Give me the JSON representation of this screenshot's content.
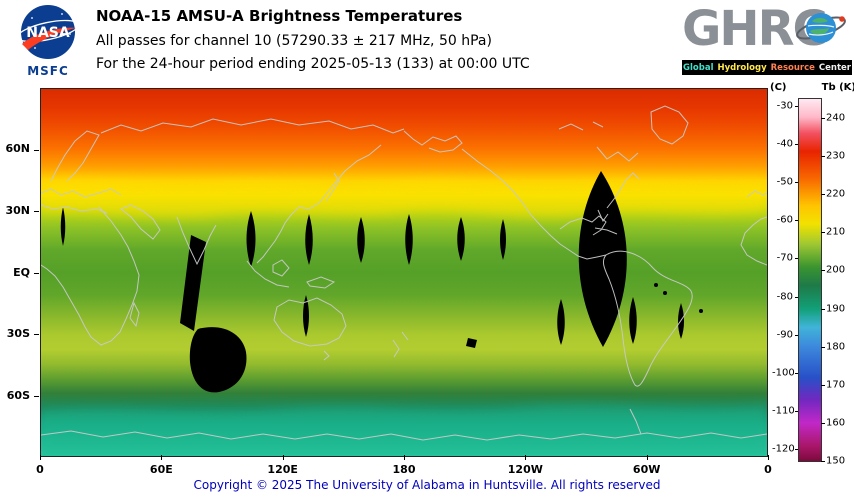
{
  "header": {
    "nasa": {
      "logo_text": "NASA",
      "org_label": "MSFC"
    },
    "title": "NOAA-15 AMSU-A Brightness Temperatures",
    "subtitle": "All passes for channel 10 (57290.33 ± 217 MHz, 50 hPa)",
    "period": "For the 24-hour period ending 2025-05-13 (133) at 00:00 UTC",
    "ghrc": {
      "letters": "GHRC",
      "tagline": [
        {
          "text": "Global",
          "color": "#45e0c8"
        },
        {
          "text": "Hydrology",
          "color": "#ffe84d"
        },
        {
          "text": "Resource",
          "color": "#ff8050"
        },
        {
          "text": "Center",
          "color": "#f0f0f0"
        }
      ]
    }
  },
  "map": {
    "lat_ticks": [
      {
        "label": "60N",
        "lat": 60
      },
      {
        "label": "30N",
        "lat": 30
      },
      {
        "label": "EQ",
        "lat": 0
      },
      {
        "label": "30S",
        "lat": -30
      },
      {
        "label": "60S",
        "lat": -60
      }
    ],
    "lon_ticks": [
      {
        "label": "0",
        "lon": 0
      },
      {
        "label": "60E",
        "lon": 60
      },
      {
        "label": "120E",
        "lon": 120
      },
      {
        "label": "180",
        "lon": 180
      },
      {
        "label": "120W",
        "lon": 240
      },
      {
        "label": "60W",
        "lon": 300
      },
      {
        "label": "0",
        "lon": 360
      }
    ],
    "missing_data_color": "#000000",
    "coastline_color": "#c9c9c9"
  },
  "colorbar": {
    "c_header": "(C)",
    "k_header": "Tb (K)",
    "k_ticks": [
      240,
      230,
      220,
      210,
      200,
      190,
      180,
      170,
      160,
      150
    ],
    "c_ticks": [
      -30,
      -40,
      -50,
      -60,
      -70,
      -80,
      -90,
      -100,
      -110,
      -120
    ],
    "k_min": 150,
    "k_max": 245,
    "gradient": [
      [
        "#ffe9f2",
        0
      ],
      [
        "#ffb8c8",
        5
      ],
      [
        "#f25060",
        9.5
      ],
      [
        "#e82400",
        14.5
      ],
      [
        "#f86800",
        22
      ],
      [
        "#ffc400",
        29.5
      ],
      [
        "#f2e200",
        34.5
      ],
      [
        "#a0c832",
        40
      ],
      [
        "#3a9430",
        46.5
      ],
      [
        "#1e7a48",
        51.5
      ],
      [
        "#12a078",
        58
      ],
      [
        "#40b4d8",
        63
      ],
      [
        "#3c88dc",
        68.5
      ],
      [
        "#2850c8",
        77
      ],
      [
        "#7028c0",
        83
      ],
      [
        "#c228c8",
        89.5
      ],
      [
        "#a81668",
        96
      ],
      [
        "#7c0a3c",
        100
      ]
    ]
  },
  "chart_data": {
    "type": "heatmap",
    "title": "NOAA-15 AMSU-A Brightness Temperatures, channel 10 (57290.33 ± 217 MHz, 50 hPa)",
    "x_ticks": [
      "0",
      "60E",
      "120E",
      "180",
      "120W",
      "60W",
      "0"
    ],
    "y_ticks": [
      "60N",
      "30N",
      "EQ",
      "30S",
      "60S"
    ],
    "colorbar_label_right": "Tb (K)",
    "colorbar_label_left": "(C)",
    "colorbar_range_k": [
      150,
      245
    ],
    "approx_zonal_profile_tb_k": [
      {
        "lat": "85N",
        "tb": 232
      },
      {
        "lat": "70N",
        "tb": 228
      },
      {
        "lat": "60N",
        "tb": 222
      },
      {
        "lat": "50N",
        "tb": 217
      },
      {
        "lat": "45N",
        "tb": 214
      },
      {
        "lat": "35N",
        "tb": 210
      },
      {
        "lat": "25N",
        "tb": 206
      },
      {
        "lat": "EQ",
        "tb": 204
      },
      {
        "lat": "15S",
        "tb": 207
      },
      {
        "lat": "25S",
        "tb": 210
      },
      {
        "lat": "35S",
        "tb": 209
      },
      {
        "lat": "45S",
        "tb": 206
      },
      {
        "lat": "55S",
        "tb": 201
      },
      {
        "lat": "65S",
        "tb": 196
      },
      {
        "lat": "75S",
        "tb": 190
      },
      {
        "lat": "85S",
        "tb": 188
      }
    ],
    "notes": "Black lens-shaped regions are missing-data gaps between satellite swaths; large gap over the western Atlantic / South America."
  },
  "footer": {
    "copyright": "Copyright © 2025 The University of Alabama in Huntsville. All rights reserved"
  }
}
